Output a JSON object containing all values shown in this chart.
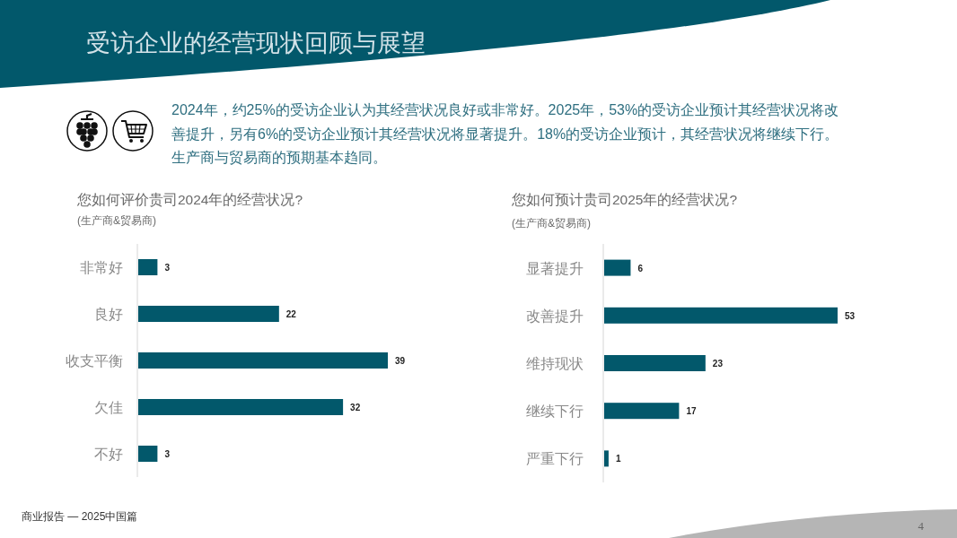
{
  "chart_data": [
    {
      "type": "other",
      "title": "受访企业的经营现状回顾与展望",
      "subtitle": "2024年，约25%的受访企业认为其经营状况良好或非常好。2025年，53%的受访企业预计其经营状况将改善提升，另有6%的受访企业预计其经营状况将显著提升。18%的受访企业预计，其经营状况将继续下行。生产商与贸易商的预期基本趋同。",
      "annotations": [
        "商业报告 — 2025中国篇",
        "4"
      ]
    },
    {
      "type": "bar",
      "orientation": "horizontal",
      "title": "您如何评价贵司2024年的经营状况?",
      "subtitle": "(生产商&贸易商)",
      "categories": [
        "非常好",
        "良好",
        "收支平衡",
        "欠佳",
        "不好"
      ],
      "values": [
        3,
        22,
        39,
        32,
        3
      ],
      "color": "#02586b",
      "data_labels": true
    },
    {
      "type": "bar",
      "orientation": "horizontal",
      "title": "您如何预计贵司2025年的经营状况?",
      "subtitle": "(生产商&贸易商)",
      "categories": [
        "显著提升",
        "改善提升",
        "维持现状",
        "继续下行",
        "严重下行"
      ],
      "values": [
        6,
        53,
        23,
        17,
        1
      ],
      "color": "#02586b",
      "data_labels": true
    }
  ]
}
